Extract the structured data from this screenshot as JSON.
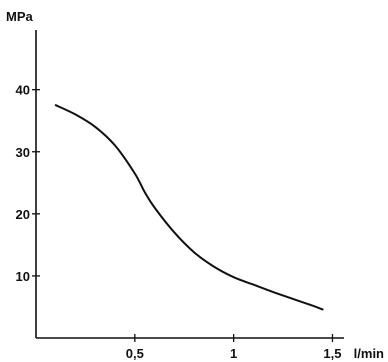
{
  "chart_data": {
    "type": "line",
    "title": "",
    "xlabel": "l/min",
    "ylabel": "MPa",
    "xlim": [
      0,
      1.7
    ],
    "ylim": [
      0,
      48
    ],
    "grid": false,
    "x_ticks": [
      0.5,
      1,
      1.5
    ],
    "x_tick_labels": [
      "0,5",
      "1",
      "1,5"
    ],
    "y_ticks": [
      10,
      20,
      30,
      40
    ],
    "y_tick_labels": [
      "10",
      "20",
      "30",
      "40"
    ],
    "series": [
      {
        "x": [
          0.1,
          0.2,
          0.3,
          0.4,
          0.5,
          0.55,
          0.6,
          0.7,
          0.8,
          0.9,
          1.0,
          1.1,
          1.2,
          1.3,
          1.4,
          1.45
        ],
        "y": [
          37.5,
          36.0,
          34.0,
          31.0,
          26.5,
          23.5,
          21.0,
          17.0,
          13.8,
          11.5,
          9.8,
          8.6,
          7.4,
          6.3,
          5.2,
          4.6
        ],
        "color": "#111111"
      }
    ]
  }
}
